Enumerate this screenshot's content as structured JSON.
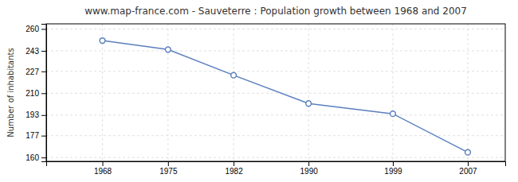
{
  "chart_data": {
    "type": "line",
    "title": "www.map-france.com - Sauveterre : Population growth between 1968 and 2007",
    "y_label": "Number of inhabitants",
    "x": [
      1968,
      1975,
      1982,
      1990,
      1999,
      2007
    ],
    "values": [
      251,
      244,
      224,
      202,
      194,
      164
    ],
    "color": "#5b7fbf",
    "marker": "circle",
    "xlim": [
      1962,
      2011
    ],
    "xticks": [
      1968,
      1975,
      1982,
      1990,
      1999,
      2007
    ],
    "ylim": [
      157,
      264
    ],
    "yticks": [
      160,
      177,
      193,
      210,
      227,
      243,
      260
    ],
    "grid": true
  }
}
